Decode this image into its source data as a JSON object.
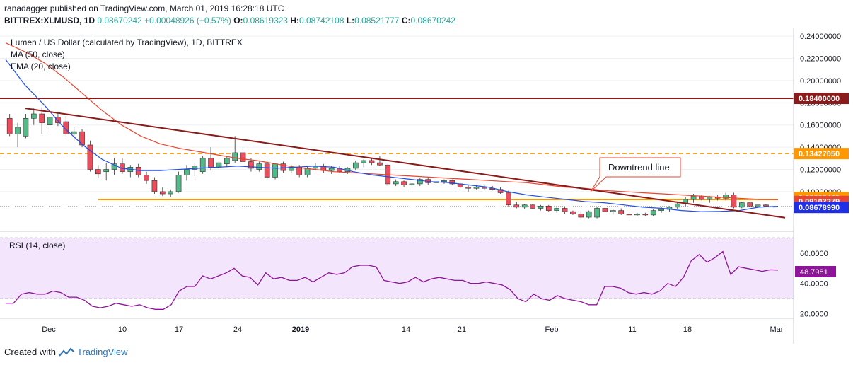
{
  "header": {
    "published_line": "ranadagger published on TradingView.com, March 01, 2019 16:28:18 UTC",
    "symbol": "BITTREX:XLMUSD, 1D",
    "price": "0.08670242",
    "change": "+0.00048926 (+0.57%)",
    "o_label": "O:",
    "o_value": "0.08619323",
    "h_label": "H:",
    "h_value": "0.08742108",
    "l_label": "L:",
    "l_value": "0.08521777",
    "c_label": "C:",
    "c_value": "0.08670242"
  },
  "legend": {
    "title": "Lumen / US Dollar (calculated by TradingView), 1D, BITTREX",
    "ma": "MA (50, close)",
    "ema": "EMA (20, close)"
  },
  "annotation": "Downtrend line",
  "price_labels": {
    "resistance": "0.18400000",
    "level_mid": "0.13427050",
    "ma50": "0.09285498",
    "current": "0.09103279",
    "ema20": "0.08678990"
  },
  "rsi": {
    "title": "RSI (14, close)",
    "value_label": "48.7981"
  },
  "footer": {
    "created_with": "Created with",
    "brand": "TradingView"
  },
  "colors": {
    "up": "#53b987",
    "down": "#eb4d5c",
    "ema": "#1f4fe8",
    "ma": "#e8442f",
    "resistance": "#8b1a1a",
    "support": "#ff9800",
    "rsi_line": "#8e1599",
    "rsi_band": "#f3e5fb"
  },
  "chart_data": [
    {
      "type": "candlestick",
      "title": "Lumen / US Dollar (calculated by TradingView), 1D, BITTREX",
      "x_ticks": [
        "Dec",
        "10",
        "17",
        "24",
        "2019",
        "14",
        "21",
        "Feb",
        "11",
        "18",
        "Mar"
      ],
      "y_ticks": [
        "0.24000000",
        "0.22000000",
        "0.20000000",
        "0.18000000",
        "0.16000000",
        "0.14000000",
        "0.12000000",
        "0.10000000"
      ],
      "ylim": [
        0.07,
        0.242
      ],
      "candles": [
        [
          0.166,
          0.17,
          0.15,
          0.152
        ],
        [
          0.152,
          0.162,
          0.14,
          0.158
        ],
        [
          0.15,
          0.17,
          0.148,
          0.166
        ],
        [
          0.166,
          0.175,
          0.16,
          0.17
        ],
        [
          0.17,
          0.176,
          0.152,
          0.162
        ],
        [
          0.16,
          0.17,
          0.155,
          0.167
        ],
        [
          0.167,
          0.172,
          0.159,
          0.162
        ],
        [
          0.163,
          0.168,
          0.15,
          0.152
        ],
        [
          0.152,
          0.158,
          0.145,
          0.154
        ],
        [
          0.154,
          0.156,
          0.14,
          0.142
        ],
        [
          0.142,
          0.146,
          0.118,
          0.12
        ],
        [
          0.12,
          0.124,
          0.112,
          0.116
        ],
        [
          0.118,
          0.126,
          0.11,
          0.12
        ],
        [
          0.12,
          0.13,
          0.115,
          0.125
        ],
        [
          0.125,
          0.13,
          0.116,
          0.118
        ],
        [
          0.118,
          0.124,
          0.113,
          0.122
        ],
        [
          0.122,
          0.125,
          0.113,
          0.115
        ],
        [
          0.115,
          0.118,
          0.107,
          0.11
        ],
        [
          0.11,
          0.113,
          0.098,
          0.1
        ],
        [
          0.1,
          0.104,
          0.096,
          0.098
        ],
        [
          0.098,
          0.102,
          0.095,
          0.1
        ],
        [
          0.1,
          0.118,
          0.099,
          0.115
        ],
        [
          0.115,
          0.124,
          0.11,
          0.12
        ],
        [
          0.12,
          0.126,
          0.114,
          0.123
        ],
        [
          0.118,
          0.132,
          0.116,
          0.13
        ],
        [
          0.13,
          0.14,
          0.119,
          0.122
        ],
        [
          0.122,
          0.128,
          0.12,
          0.126
        ],
        [
          0.125,
          0.132,
          0.122,
          0.13
        ],
        [
          0.128,
          0.15,
          0.126,
          0.135
        ],
        [
          0.135,
          0.138,
          0.125,
          0.127
        ],
        [
          0.127,
          0.13,
          0.118,
          0.121
        ],
        [
          0.12,
          0.127,
          0.118,
          0.125
        ],
        [
          0.125,
          0.128,
          0.11,
          0.113
        ],
        [
          0.113,
          0.126,
          0.111,
          0.125
        ],
        [
          0.125,
          0.127,
          0.117,
          0.119
        ],
        [
          0.119,
          0.124,
          0.117,
          0.122
        ],
        [
          0.122,
          0.124,
          0.113,
          0.115
        ],
        [
          0.115,
          0.123,
          0.113,
          0.121
        ],
        [
          0.121,
          0.126,
          0.119,
          0.123
        ],
        [
          0.123,
          0.125,
          0.117,
          0.119
        ],
        [
          0.119,
          0.123,
          0.116,
          0.121
        ],
        [
          0.121,
          0.123,
          0.117,
          0.118
        ],
        [
          0.118,
          0.122,
          0.116,
          0.121
        ],
        [
          0.121,
          0.128,
          0.119,
          0.126
        ],
        [
          0.126,
          0.129,
          0.122,
          0.128
        ],
        [
          0.128,
          0.13,
          0.124,
          0.126
        ],
        [
          0.126,
          0.132,
          0.123,
          0.124
        ],
        [
          0.124,
          0.126,
          0.105,
          0.107
        ],
        [
          0.107,
          0.111,
          0.105,
          0.109
        ],
        [
          0.109,
          0.11,
          0.104,
          0.106
        ],
        [
          0.106,
          0.109,
          0.103,
          0.107
        ],
        [
          0.107,
          0.112,
          0.105,
          0.111
        ],
        [
          0.111,
          0.113,
          0.106,
          0.108
        ],
        [
          0.108,
          0.111,
          0.106,
          0.109
        ],
        [
          0.109,
          0.111,
          0.107,
          0.11
        ],
        [
          0.11,
          0.111,
          0.106,
          0.107
        ],
        [
          0.107,
          0.109,
          0.103,
          0.104
        ],
        [
          0.104,
          0.106,
          0.1,
          0.103
        ],
        [
          0.103,
          0.105,
          0.102,
          0.104
        ],
        [
          0.104,
          0.106,
          0.102,
          0.103
        ],
        [
          0.103,
          0.105,
          0.101,
          0.102
        ],
        [
          0.102,
          0.104,
          0.098,
          0.099
        ],
        [
          0.099,
          0.101,
          0.086,
          0.088
        ],
        [
          0.088,
          0.091,
          0.085,
          0.086
        ],
        [
          0.086,
          0.089,
          0.084,
          0.088
        ],
        [
          0.088,
          0.089,
          0.084,
          0.085
        ],
        [
          0.085,
          0.088,
          0.083,
          0.087
        ],
        [
          0.087,
          0.088,
          0.082,
          0.083
        ],
        [
          0.083,
          0.086,
          0.081,
          0.085
        ],
        [
          0.085,
          0.086,
          0.08,
          0.082
        ],
        [
          0.082,
          0.083,
          0.079,
          0.08
        ],
        [
          0.08,
          0.082,
          0.076,
          0.077
        ],
        [
          0.077,
          0.083,
          0.076,
          0.082
        ],
        [
          0.077,
          0.086,
          0.076,
          0.085
        ],
        [
          0.085,
          0.088,
          0.081,
          0.082
        ],
        [
          0.082,
          0.084,
          0.08,
          0.083
        ],
        [
          0.083,
          0.085,
          0.079,
          0.08
        ],
        [
          0.08,
          0.081,
          0.078,
          0.079
        ],
        [
          0.079,
          0.081,
          0.078,
          0.08
        ],
        [
          0.08,
          0.081,
          0.078,
          0.079
        ],
        [
          0.079,
          0.084,
          0.078,
          0.083
        ],
        [
          0.083,
          0.086,
          0.081,
          0.084
        ],
        [
          0.084,
          0.087,
          0.082,
          0.086
        ],
        [
          0.086,
          0.09,
          0.084,
          0.089
        ],
        [
          0.089,
          0.095,
          0.087,
          0.093
        ],
        [
          0.093,
          0.098,
          0.09,
          0.096
        ],
        [
          0.096,
          0.097,
          0.092,
          0.093
        ],
        [
          0.093,
          0.096,
          0.09,
          0.095
        ],
        [
          0.095,
          0.097,
          0.092,
          0.094
        ],
        [
          0.094,
          0.099,
          0.092,
          0.097
        ],
        [
          0.097,
          0.099,
          0.085,
          0.086
        ],
        [
          0.086,
          0.091,
          0.085,
          0.09
        ],
        [
          0.09,
          0.091,
          0.086,
          0.087
        ],
        [
          0.087,
          0.089,
          0.085,
          0.088
        ],
        [
          0.088,
          0.089,
          0.086,
          0.087
        ],
        [
          0.0862,
          0.0874,
          0.0852,
          0.0867
        ]
      ],
      "ema20": [
        [
          0,
          0.219
        ],
        [
          10,
          0.196
        ],
        [
          20,
          0.178
        ],
        [
          30,
          0.158
        ],
        [
          40,
          0.142
        ],
        [
          50,
          0.129
        ],
        [
          60,
          0.121
        ],
        [
          70,
          0.119
        ],
        [
          80,
          0.119
        ],
        [
          90,
          0.12
        ],
        [
          100,
          0.121
        ],
        [
          110,
          0.122
        ],
        [
          120,
          0.123
        ],
        [
          130,
          0.122
        ],
        [
          140,
          0.121
        ],
        [
          150,
          0.122
        ],
        [
          160,
          0.123
        ],
        [
          170,
          0.122
        ],
        [
          180,
          0.118
        ],
        [
          190,
          0.115
        ],
        [
          200,
          0.113
        ],
        [
          210,
          0.111
        ],
        [
          220,
          0.109
        ],
        [
          230,
          0.108
        ],
        [
          240,
          0.106
        ],
        [
          250,
          0.104
        ],
        [
          260,
          0.1
        ],
        [
          270,
          0.097
        ],
        [
          280,
          0.095
        ],
        [
          290,
          0.093
        ],
        [
          300,
          0.091
        ],
        [
          310,
          0.09
        ],
        [
          320,
          0.088
        ],
        [
          330,
          0.086
        ],
        [
          340,
          0.085
        ],
        [
          350,
          0.083
        ],
        [
          360,
          0.082
        ],
        [
          370,
          0.0822
        ],
        [
          380,
          0.083
        ],
        [
          390,
          0.086
        ],
        [
          400,
          0.0868
        ]
      ],
      "ma50": [
        [
          0,
          0.234
        ],
        [
          10,
          0.226
        ],
        [
          20,
          0.216
        ],
        [
          30,
          0.203
        ],
        [
          40,
          0.188
        ],
        [
          50,
          0.173
        ],
        [
          60,
          0.16
        ],
        [
          70,
          0.15
        ],
        [
          80,
          0.143
        ],
        [
          90,
          0.139
        ],
        [
          100,
          0.136
        ],
        [
          110,
          0.133
        ],
        [
          120,
          0.13
        ],
        [
          130,
          0.128
        ],
        [
          140,
          0.125
        ],
        [
          150,
          0.122
        ],
        [
          160,
          0.12
        ],
        [
          170,
          0.118
        ],
        [
          180,
          0.117
        ],
        [
          190,
          0.116
        ],
        [
          200,
          0.115
        ],
        [
          210,
          0.114
        ],
        [
          220,
          0.113
        ],
        [
          230,
          0.112
        ],
        [
          240,
          0.111
        ],
        [
          250,
          0.11
        ],
        [
          260,
          0.109
        ],
        [
          270,
          0.108
        ],
        [
          280,
          0.106
        ],
        [
          290,
          0.104
        ],
        [
          300,
          0.103
        ],
        [
          310,
          0.101
        ],
        [
          320,
          0.1
        ],
        [
          330,
          0.099
        ],
        [
          340,
          0.098
        ],
        [
          350,
          0.097
        ],
        [
          360,
          0.096
        ],
        [
          370,
          0.095
        ],
        [
          380,
          0.094
        ],
        [
          390,
          0.093
        ],
        [
          400,
          0.0929
        ]
      ],
      "horizontal_levels": {
        "resistance": 0.184,
        "mid": 0.13427,
        "support": 0.0929
      },
      "trendline": [
        [
          0.0,
          0.175
        ],
        [
          1.0,
          0.0765
        ]
      ]
    },
    {
      "type": "line",
      "title": "RSI (14, close)",
      "y_ticks": [
        "60.0000",
        "40.0000",
        "20.0000"
      ],
      "ylim": [
        18,
        72
      ],
      "band": [
        30,
        70
      ],
      "values": [
        27,
        27,
        33,
        34,
        33,
        33,
        35,
        34,
        31,
        31,
        29,
        25,
        24,
        25,
        27,
        26,
        25,
        26,
        24,
        23,
        23,
        26,
        35,
        38,
        38,
        45,
        43,
        45,
        47,
        50,
        45,
        44,
        39,
        47,
        43,
        44,
        42,
        42,
        44,
        41,
        44,
        47,
        46,
        47,
        51,
        52,
        52,
        51,
        42,
        41,
        40,
        41,
        44,
        41,
        43,
        44,
        43,
        42,
        42,
        40,
        40,
        41,
        40,
        39,
        36,
        30,
        28,
        33,
        30,
        29,
        32,
        30,
        29,
        28,
        26,
        26,
        38,
        38,
        37,
        34,
        33,
        34,
        33,
        35,
        40,
        38,
        44,
        55,
        59,
        54,
        57,
        61,
        46,
        51,
        50,
        49,
        48,
        49,
        48.8
      ],
      "xlim": [
        0,
        98
      ]
    }
  ]
}
